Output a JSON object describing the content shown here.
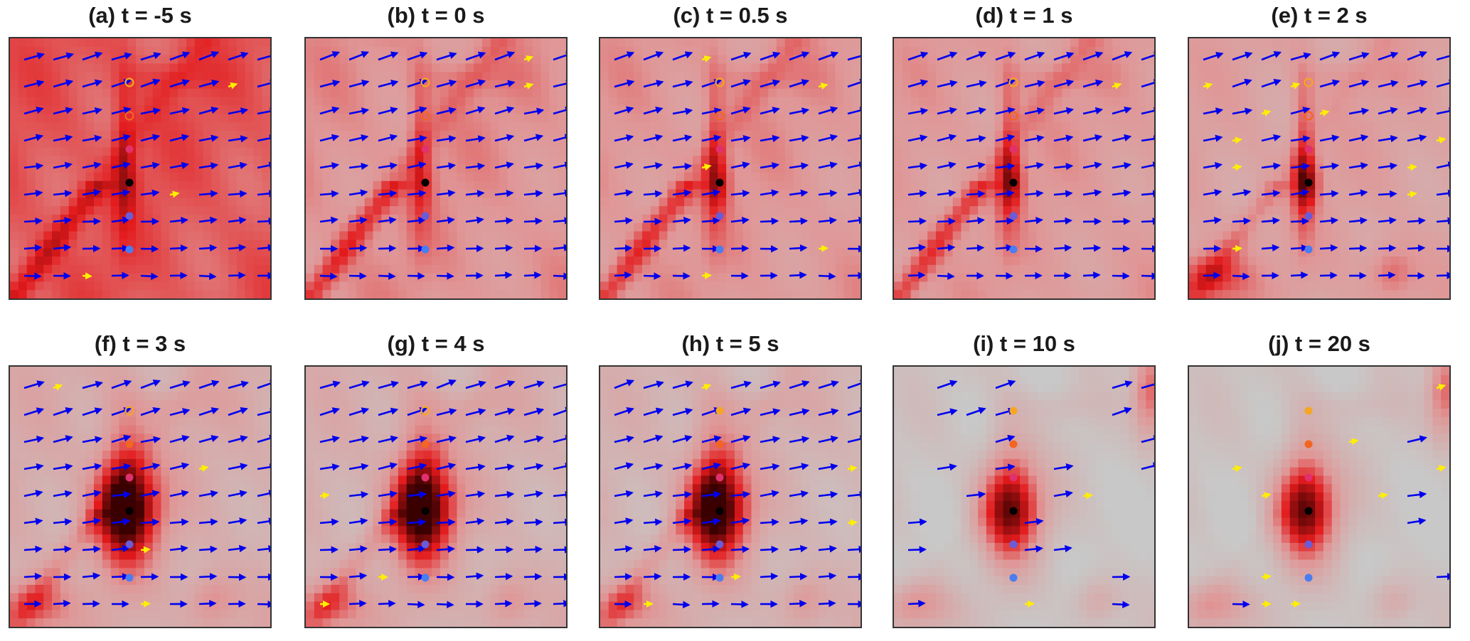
{
  "figure": {
    "panels": [
      {
        "label": "(a) t = -5 s",
        "t": -5
      },
      {
        "label": "(b) t = 0 s",
        "t": 0
      },
      {
        "label": "(c) t = 0.5 s",
        "t": 0.5
      },
      {
        "label": "(d) t = 1 s",
        "t": 1
      },
      {
        "label": "(e) t = 2 s",
        "t": 2
      },
      {
        "label": "(f) t = 3 s",
        "t": 3
      },
      {
        "label": "(g) t = 4 s",
        "t": 4
      },
      {
        "label": "(h) t = 5 s",
        "t": 5
      },
      {
        "label": "(i) t = 10 s",
        "t": 10
      },
      {
        "label": "(j) t = 20 s",
        "t": 20
      }
    ],
    "colors": {
      "field_low": "#c8c8c8",
      "field_high": "#e31a1c",
      "field_core": "#3a0000",
      "vector_main": "#0000ee",
      "vector_secondary": "#ffee00",
      "frame": "#333333"
    },
    "probe_colors": [
      "#f5a623",
      "#f26522",
      "#e0306e",
      "#000000",
      "#6b5bd6",
      "#4a7df0"
    ]
  }
}
